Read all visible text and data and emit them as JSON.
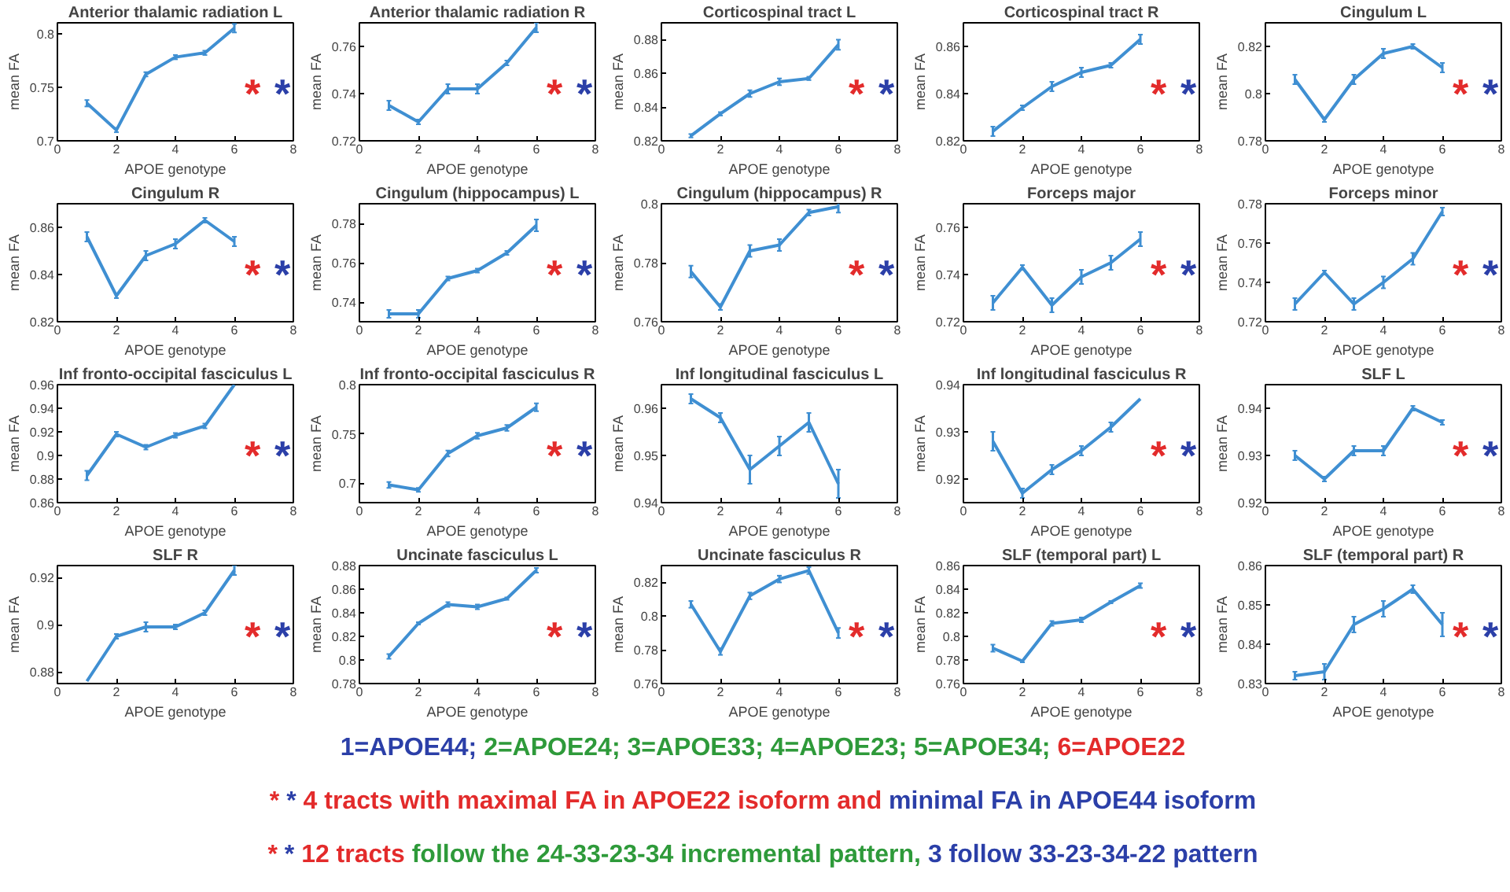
{
  "chart_data": [
    {
      "type": "line",
      "title": "Anterior thalamic radiation L",
      "xlabel": "APOE genotype",
      "ylabel": "mean FA",
      "x": [
        1,
        2,
        3,
        4,
        5,
        6
      ],
      "xlim": [
        0,
        8
      ],
      "xticks": [
        0,
        2,
        4,
        6,
        8
      ],
      "ylim": [
        0.7,
        0.81
      ],
      "yticks": [
        0.7,
        0.75,
        0.8
      ],
      "series": [
        {
          "color": "#3f8fd2",
          "values": [
            0.735,
            0.71,
            0.762,
            0.778,
            0.782,
            0.805
          ],
          "errors": [
            0.003,
            0.002,
            0.002,
            0.002,
            0.002,
            0.004
          ]
        }
      ],
      "annotations": [
        "*",
        "*"
      ]
    },
    {
      "type": "line",
      "title": "Anterior thalamic radiation R",
      "xlabel": "APOE genotype",
      "ylabel": "mean FA",
      "x": [
        1,
        2,
        3,
        4,
        5,
        6
      ],
      "xlim": [
        0,
        8
      ],
      "xticks": [
        0,
        2,
        4,
        6,
        8
      ],
      "ylim": [
        0.72,
        0.77
      ],
      "yticks": [
        0.72,
        0.74,
        0.76
      ],
      "series": [
        {
          "color": "#3f8fd2",
          "values": [
            0.735,
            0.728,
            0.742,
            0.742,
            0.753,
            0.768
          ],
          "errors": [
            0.002,
            0.001,
            0.002,
            0.002,
            0.001,
            0.002
          ]
        }
      ],
      "annotations": [
        "*",
        "*"
      ]
    },
    {
      "type": "line",
      "title": "Corticospinal tract L",
      "xlabel": "APOE genotype",
      "ylabel": "mean FA",
      "x": [
        1,
        2,
        3,
        4,
        5,
        6
      ],
      "xlim": [
        0,
        8
      ],
      "xticks": [
        0,
        2,
        4,
        6,
        8
      ],
      "ylim": [
        0.82,
        0.89
      ],
      "yticks": [
        0.82,
        0.84,
        0.86,
        0.88
      ],
      "series": [
        {
          "color": "#3f8fd2",
          "values": [
            0.823,
            0.836,
            0.848,
            0.855,
            0.857,
            0.877
          ],
          "errors": [
            0.001,
            0.001,
            0.002,
            0.002,
            0.001,
            0.003
          ]
        }
      ],
      "annotations": [
        "*",
        "*"
      ]
    },
    {
      "type": "line",
      "title": "Corticospinal tract R",
      "xlabel": "APOE genotype",
      "ylabel": "mean FA",
      "x": [
        1,
        2,
        3,
        4,
        5,
        6
      ],
      "xlim": [
        0,
        8
      ],
      "xticks": [
        0,
        2,
        4,
        6,
        8
      ],
      "ylim": [
        0.82,
        0.87
      ],
      "yticks": [
        0.82,
        0.84,
        0.86
      ],
      "series": [
        {
          "color": "#3f8fd2",
          "values": [
            0.824,
            0.834,
            0.843,
            0.849,
            0.852,
            0.863
          ],
          "errors": [
            0.002,
            0.001,
            0.002,
            0.002,
            0.001,
            0.002
          ]
        }
      ],
      "annotations": [
        "*",
        "*"
      ]
    },
    {
      "type": "line",
      "title": "Cingulum L",
      "xlabel": "APOE genotype",
      "ylabel": "mean FA",
      "x": [
        1,
        2,
        3,
        4,
        5,
        6
      ],
      "xlim": [
        0,
        8
      ],
      "xticks": [
        0,
        2,
        4,
        6,
        8
      ],
      "ylim": [
        0.78,
        0.83
      ],
      "yticks": [
        0.78,
        0.8,
        0.82
      ],
      "series": [
        {
          "color": "#3f8fd2",
          "values": [
            0.806,
            0.789,
            0.806,
            0.817,
            0.82,
            0.811
          ],
          "errors": [
            0.002,
            0.001,
            0.002,
            0.002,
            0.001,
            0.002
          ]
        }
      ],
      "annotations": [
        "*",
        "*"
      ]
    },
    {
      "type": "line",
      "title": "Cingulum R",
      "xlabel": "APOE genotype",
      "ylabel": "mean FA",
      "x": [
        1,
        2,
        3,
        4,
        5,
        6
      ],
      "xlim": [
        0,
        8
      ],
      "xticks": [
        0,
        2,
        4,
        6,
        8
      ],
      "ylim": [
        0.82,
        0.87
      ],
      "yticks": [
        0.82,
        0.84,
        0.86
      ],
      "series": [
        {
          "color": "#3f8fd2",
          "values": [
            0.856,
            0.831,
            0.848,
            0.853,
            0.863,
            0.854
          ],
          "errors": [
            0.002,
            0.001,
            0.002,
            0.002,
            0.001,
            0.002
          ]
        }
      ],
      "annotations": [
        "*",
        "*"
      ]
    },
    {
      "type": "line",
      "title": "Cingulum (hippocampus) L",
      "xlabel": "APOE genotype",
      "ylabel": "mean FA",
      "x": [
        1,
        2,
        3,
        4,
        5,
        6
      ],
      "xlim": [
        0,
        8
      ],
      "xticks": [
        0,
        2,
        4,
        6,
        8
      ],
      "ylim": [
        0.73,
        0.79
      ],
      "yticks": [
        0.74,
        0.76,
        0.78
      ],
      "series": [
        {
          "color": "#3f8fd2",
          "values": [
            0.734,
            0.734,
            0.752,
            0.756,
            0.765,
            0.779
          ],
          "errors": [
            0.002,
            0.002,
            0.001,
            0.001,
            0.001,
            0.003
          ]
        }
      ],
      "annotations": [
        "*",
        "*"
      ]
    },
    {
      "type": "line",
      "title": "Cingulum (hippocampus) R",
      "xlabel": "APOE genotype",
      "ylabel": "mean FA",
      "x": [
        1,
        2,
        3,
        4,
        5,
        6
      ],
      "xlim": [
        0,
        8
      ],
      "xticks": [
        0,
        2,
        4,
        6,
        8
      ],
      "ylim": [
        0.76,
        0.8
      ],
      "yticks": [
        0.76,
        0.78,
        0.8
      ],
      "series": [
        {
          "color": "#3f8fd2",
          "values": [
            0.777,
            0.765,
            0.784,
            0.786,
            0.797,
            0.799
          ],
          "errors": [
            0.002,
            0.001,
            0.002,
            0.002,
            0.001,
            0.002
          ]
        }
      ],
      "annotations": [
        "*",
        "*"
      ]
    },
    {
      "type": "line",
      "title": "Forceps major",
      "xlabel": "APOE genotype",
      "ylabel": "mean FA",
      "x": [
        1,
        2,
        3,
        4,
        5,
        6
      ],
      "xlim": [
        0,
        8
      ],
      "xticks": [
        0,
        2,
        4,
        6,
        8
      ],
      "ylim": [
        0.72,
        0.77
      ],
      "yticks": [
        0.72,
        0.74,
        0.76
      ],
      "series": [
        {
          "color": "#3f8fd2",
          "values": [
            0.728,
            0.743,
            0.727,
            0.739,
            0.745,
            0.755
          ],
          "errors": [
            0.003,
            0.001,
            0.003,
            0.003,
            0.003,
            0.003
          ]
        }
      ],
      "annotations": [
        "*",
        "*"
      ]
    },
    {
      "type": "line",
      "title": "Forceps minor",
      "xlabel": "APOE genotype",
      "ylabel": "mean FA",
      "x": [
        1,
        2,
        3,
        4,
        5,
        6
      ],
      "xlim": [
        0,
        8
      ],
      "xticks": [
        0,
        2,
        4,
        6,
        8
      ],
      "ylim": [
        0.72,
        0.78
      ],
      "yticks": [
        0.72,
        0.74,
        0.76,
        0.78
      ],
      "series": [
        {
          "color": "#3f8fd2",
          "values": [
            0.729,
            0.745,
            0.729,
            0.74,
            0.752,
            0.776
          ],
          "errors": [
            0.003,
            0.001,
            0.003,
            0.003,
            0.003,
            0.002
          ]
        }
      ],
      "annotations": [
        "*",
        "*"
      ]
    },
    {
      "type": "line",
      "title": "Inf fronto-occipital fasciculus L",
      "xlabel": "APOE genotype",
      "ylabel": "mean FA",
      "x": [
        1,
        2,
        3,
        4,
        5,
        6
      ],
      "xlim": [
        0,
        8
      ],
      "xticks": [
        0,
        2,
        4,
        6,
        8
      ],
      "ylim": [
        0.86,
        0.96
      ],
      "yticks": [
        0.86,
        0.88,
        0.9,
        0.92,
        0.94,
        0.96
      ],
      "series": [
        {
          "color": "#3f8fd2",
          "values": [
            0.883,
            0.918,
            0.907,
            0.917,
            0.925,
            0.96
          ],
          "errors": [
            0.004,
            0.002,
            0.002,
            0.002,
            0.002,
            null
          ]
        }
      ],
      "annotations": [
        "*",
        "*"
      ]
    },
    {
      "type": "line",
      "title": "Inf fronto-occipital fasciculus R",
      "xlabel": "APOE genotype",
      "ylabel": "mean FA",
      "x": [
        1,
        2,
        3,
        4,
        5,
        6
      ],
      "xlim": [
        0,
        8
      ],
      "xticks": [
        0,
        2,
        4,
        6,
        8
      ],
      "ylim": [
        0.68,
        0.8
      ],
      "yticks": [
        0.7,
        0.75,
        0.8
      ],
      "series": [
        {
          "color": "#3f8fd2",
          "values": [
            0.698,
            0.693,
            0.73,
            0.748,
            0.756,
            0.777
          ],
          "errors": [
            0.003,
            0.002,
            0.003,
            0.003,
            0.003,
            0.004
          ]
        }
      ],
      "annotations": [
        "*",
        "*"
      ]
    },
    {
      "type": "line",
      "title": "Inf longitudinal fasciculus L",
      "xlabel": "APOE genotype",
      "ylabel": "mean FA",
      "x": [
        1,
        2,
        3,
        4,
        5,
        6
      ],
      "xlim": [
        0,
        8
      ],
      "xticks": [
        0,
        2,
        4,
        6,
        8
      ],
      "ylim": [
        0.94,
        0.965
      ],
      "yticks": [
        0.94,
        0.95,
        0.96
      ],
      "series": [
        {
          "color": "#3f8fd2",
          "values": [
            0.962,
            0.958,
            0.947,
            0.952,
            0.957,
            0.944
          ],
          "errors": [
            0.001,
            0.001,
            0.003,
            0.002,
            0.002,
            0.003
          ]
        }
      ]
    },
    {
      "type": "line",
      "title": "Inf longitudinal fasciculus R",
      "xlabel": "APOE genotype",
      "ylabel": "mean FA",
      "x": [
        1,
        2,
        3,
        4,
        5,
        6
      ],
      "xlim": [
        0,
        8
      ],
      "xticks": [
        0,
        2,
        4,
        6,
        8
      ],
      "ylim": [
        0.915,
        0.94
      ],
      "yticks": [
        0.92,
        0.93,
        0.94
      ],
      "series": [
        {
          "color": "#3f8fd2",
          "values": [
            0.928,
            0.917,
            0.922,
            0.926,
            0.931,
            0.937
          ],
          "errors": [
            0.002,
            0.001,
            0.001,
            0.001,
            0.001,
            null
          ]
        }
      ],
      "annotations": [
        "*",
        "*"
      ]
    },
    {
      "type": "line",
      "title": "SLF L",
      "xlabel": "APOE genotype",
      "ylabel": "mean FA",
      "x": [
        1,
        2,
        3,
        4,
        5,
        6
      ],
      "xlim": [
        0,
        8
      ],
      "xticks": [
        0,
        2,
        4,
        6,
        8
      ],
      "ylim": [
        0.92,
        0.945
      ],
      "yticks": [
        0.92,
        0.93,
        0.94
      ],
      "series": [
        {
          "color": "#3f8fd2",
          "values": [
            0.93,
            0.925,
            0.931,
            0.931,
            0.94,
            0.937
          ],
          "errors": [
            0.001,
            0.0005,
            0.001,
            0.001,
            0.0005,
            0.0005
          ]
        }
      ],
      "annotations": [
        "*",
        "*"
      ]
    },
    {
      "type": "line",
      "title": "SLF R",
      "xlabel": "APOE genotype",
      "ylabel": "mean FA",
      "x": [
        1,
        2,
        3,
        4,
        5,
        6
      ],
      "xlim": [
        0,
        8
      ],
      "xticks": [
        0,
        2,
        4,
        6,
        8
      ],
      "ylim": [
        0.875,
        0.925
      ],
      "yticks": [
        0.88,
        0.9,
        0.92
      ],
      "series": [
        {
          "color": "#3f8fd2",
          "values": [
            0.876,
            0.895,
            0.899,
            0.899,
            0.905,
            0.923
          ],
          "errors": [
            null,
            0.001,
            0.002,
            0.001,
            0.001,
            0.002
          ]
        }
      ],
      "annotations": [
        "*",
        "*"
      ]
    },
    {
      "type": "line",
      "title": "Uncinate fasciculus L",
      "xlabel": "APOE genotype",
      "ylabel": "mean FA",
      "x": [
        1,
        2,
        3,
        4,
        5,
        6
      ],
      "xlim": [
        0,
        8
      ],
      "xticks": [
        0,
        2,
        4,
        6,
        8
      ],
      "ylim": [
        0.78,
        0.88
      ],
      "yticks": [
        0.78,
        0.8,
        0.82,
        0.84,
        0.86,
        0.88
      ],
      "series": [
        {
          "color": "#3f8fd2",
          "values": [
            0.803,
            0.831,
            0.847,
            0.845,
            0.852,
            0.876
          ],
          "errors": [
            0.002,
            0.001,
            0.002,
            0.002,
            0.001,
            0.002
          ]
        }
      ],
      "annotations": [
        "*",
        "*"
      ]
    },
    {
      "type": "line",
      "title": "Uncinate fasciculus R",
      "xlabel": "APOE genotype",
      "ylabel": "mean FA",
      "x": [
        1,
        2,
        3,
        4,
        5,
        6
      ],
      "xlim": [
        0,
        8
      ],
      "xticks": [
        0,
        2,
        4,
        6,
        8
      ],
      "ylim": [
        0.76,
        0.83
      ],
      "yticks": [
        0.76,
        0.78,
        0.8,
        0.82
      ],
      "series": [
        {
          "color": "#3f8fd2",
          "values": [
            0.807,
            0.779,
            0.812,
            0.822,
            0.827,
            0.79
          ],
          "errors": [
            0.002,
            0.002,
            0.002,
            0.002,
            0.002,
            0.003
          ]
        }
      ],
      "annotations": [
        "*",
        "*"
      ]
    },
    {
      "type": "line",
      "title": "SLF (temporal part) L",
      "xlabel": "APOE genotype",
      "ylabel": "mean FA",
      "x": [
        1,
        2,
        3,
        4,
        5,
        6
      ],
      "xlim": [
        0,
        8
      ],
      "xticks": [
        0,
        2,
        4,
        6,
        8
      ],
      "ylim": [
        0.76,
        0.86
      ],
      "yticks": [
        0.76,
        0.78,
        0.8,
        0.82,
        0.84,
        0.86
      ],
      "series": [
        {
          "color": "#3f8fd2",
          "values": [
            0.79,
            0.779,
            0.811,
            0.814,
            0.829,
            0.843
          ],
          "errors": [
            0.003,
            0.001,
            0.002,
            0.002,
            0.001,
            0.002
          ]
        }
      ],
      "annotations": [
        "*",
        "*"
      ]
    },
    {
      "type": "line",
      "title": "SLF (temporal part) R",
      "xlabel": "APOE genotype",
      "ylabel": "mean FA",
      "x": [
        1,
        2,
        3,
        4,
        5,
        6
      ],
      "xlim": [
        0,
        8
      ],
      "xticks": [
        0,
        2,
        4,
        6,
        8
      ],
      "ylim": [
        0.83,
        0.86
      ],
      "yticks": [
        0.83,
        0.84,
        0.85,
        0.86
      ],
      "series": [
        {
          "color": "#3f8fd2",
          "values": [
            0.832,
            0.833,
            0.845,
            0.849,
            0.854,
            0.845
          ],
          "errors": [
            0.001,
            0.002,
            0.002,
            0.002,
            0.001,
            0.003
          ]
        }
      ],
      "annotations": [
        "*",
        "*"
      ]
    },
    {
      "type": "other",
      "annotations": [
        "1=APOE44;",
        "2=APOE24; 3=APOE33; 4=APOE23; 5=APOE34;",
        "6=APOE22"
      ],
      "colors": [
        "#2b3fa8",
        "#2e9a3a",
        "#e32b2b"
      ]
    },
    {
      "type": "other",
      "annotations": [
        "*",
        "*",
        "4 tracts with maximal FA in APOE22 isoform and",
        "minimal FA in APOE44 isoform"
      ],
      "colors": [
        "#e32b2b",
        "#2b3fa8",
        "#e32b2b",
        "#2b3fa8"
      ]
    },
    {
      "type": "other",
      "annotations": [
        "*",
        "*",
        "12 tracts",
        "follow the 24-33-23-34 incremental pattern,",
        "3 follow 33-23-34-22 pattern"
      ],
      "colors": [
        "#e32b2b",
        "#2b3fa8",
        "#e32b2b",
        "#2e9a3a",
        "#2b3fa8"
      ]
    }
  ]
}
